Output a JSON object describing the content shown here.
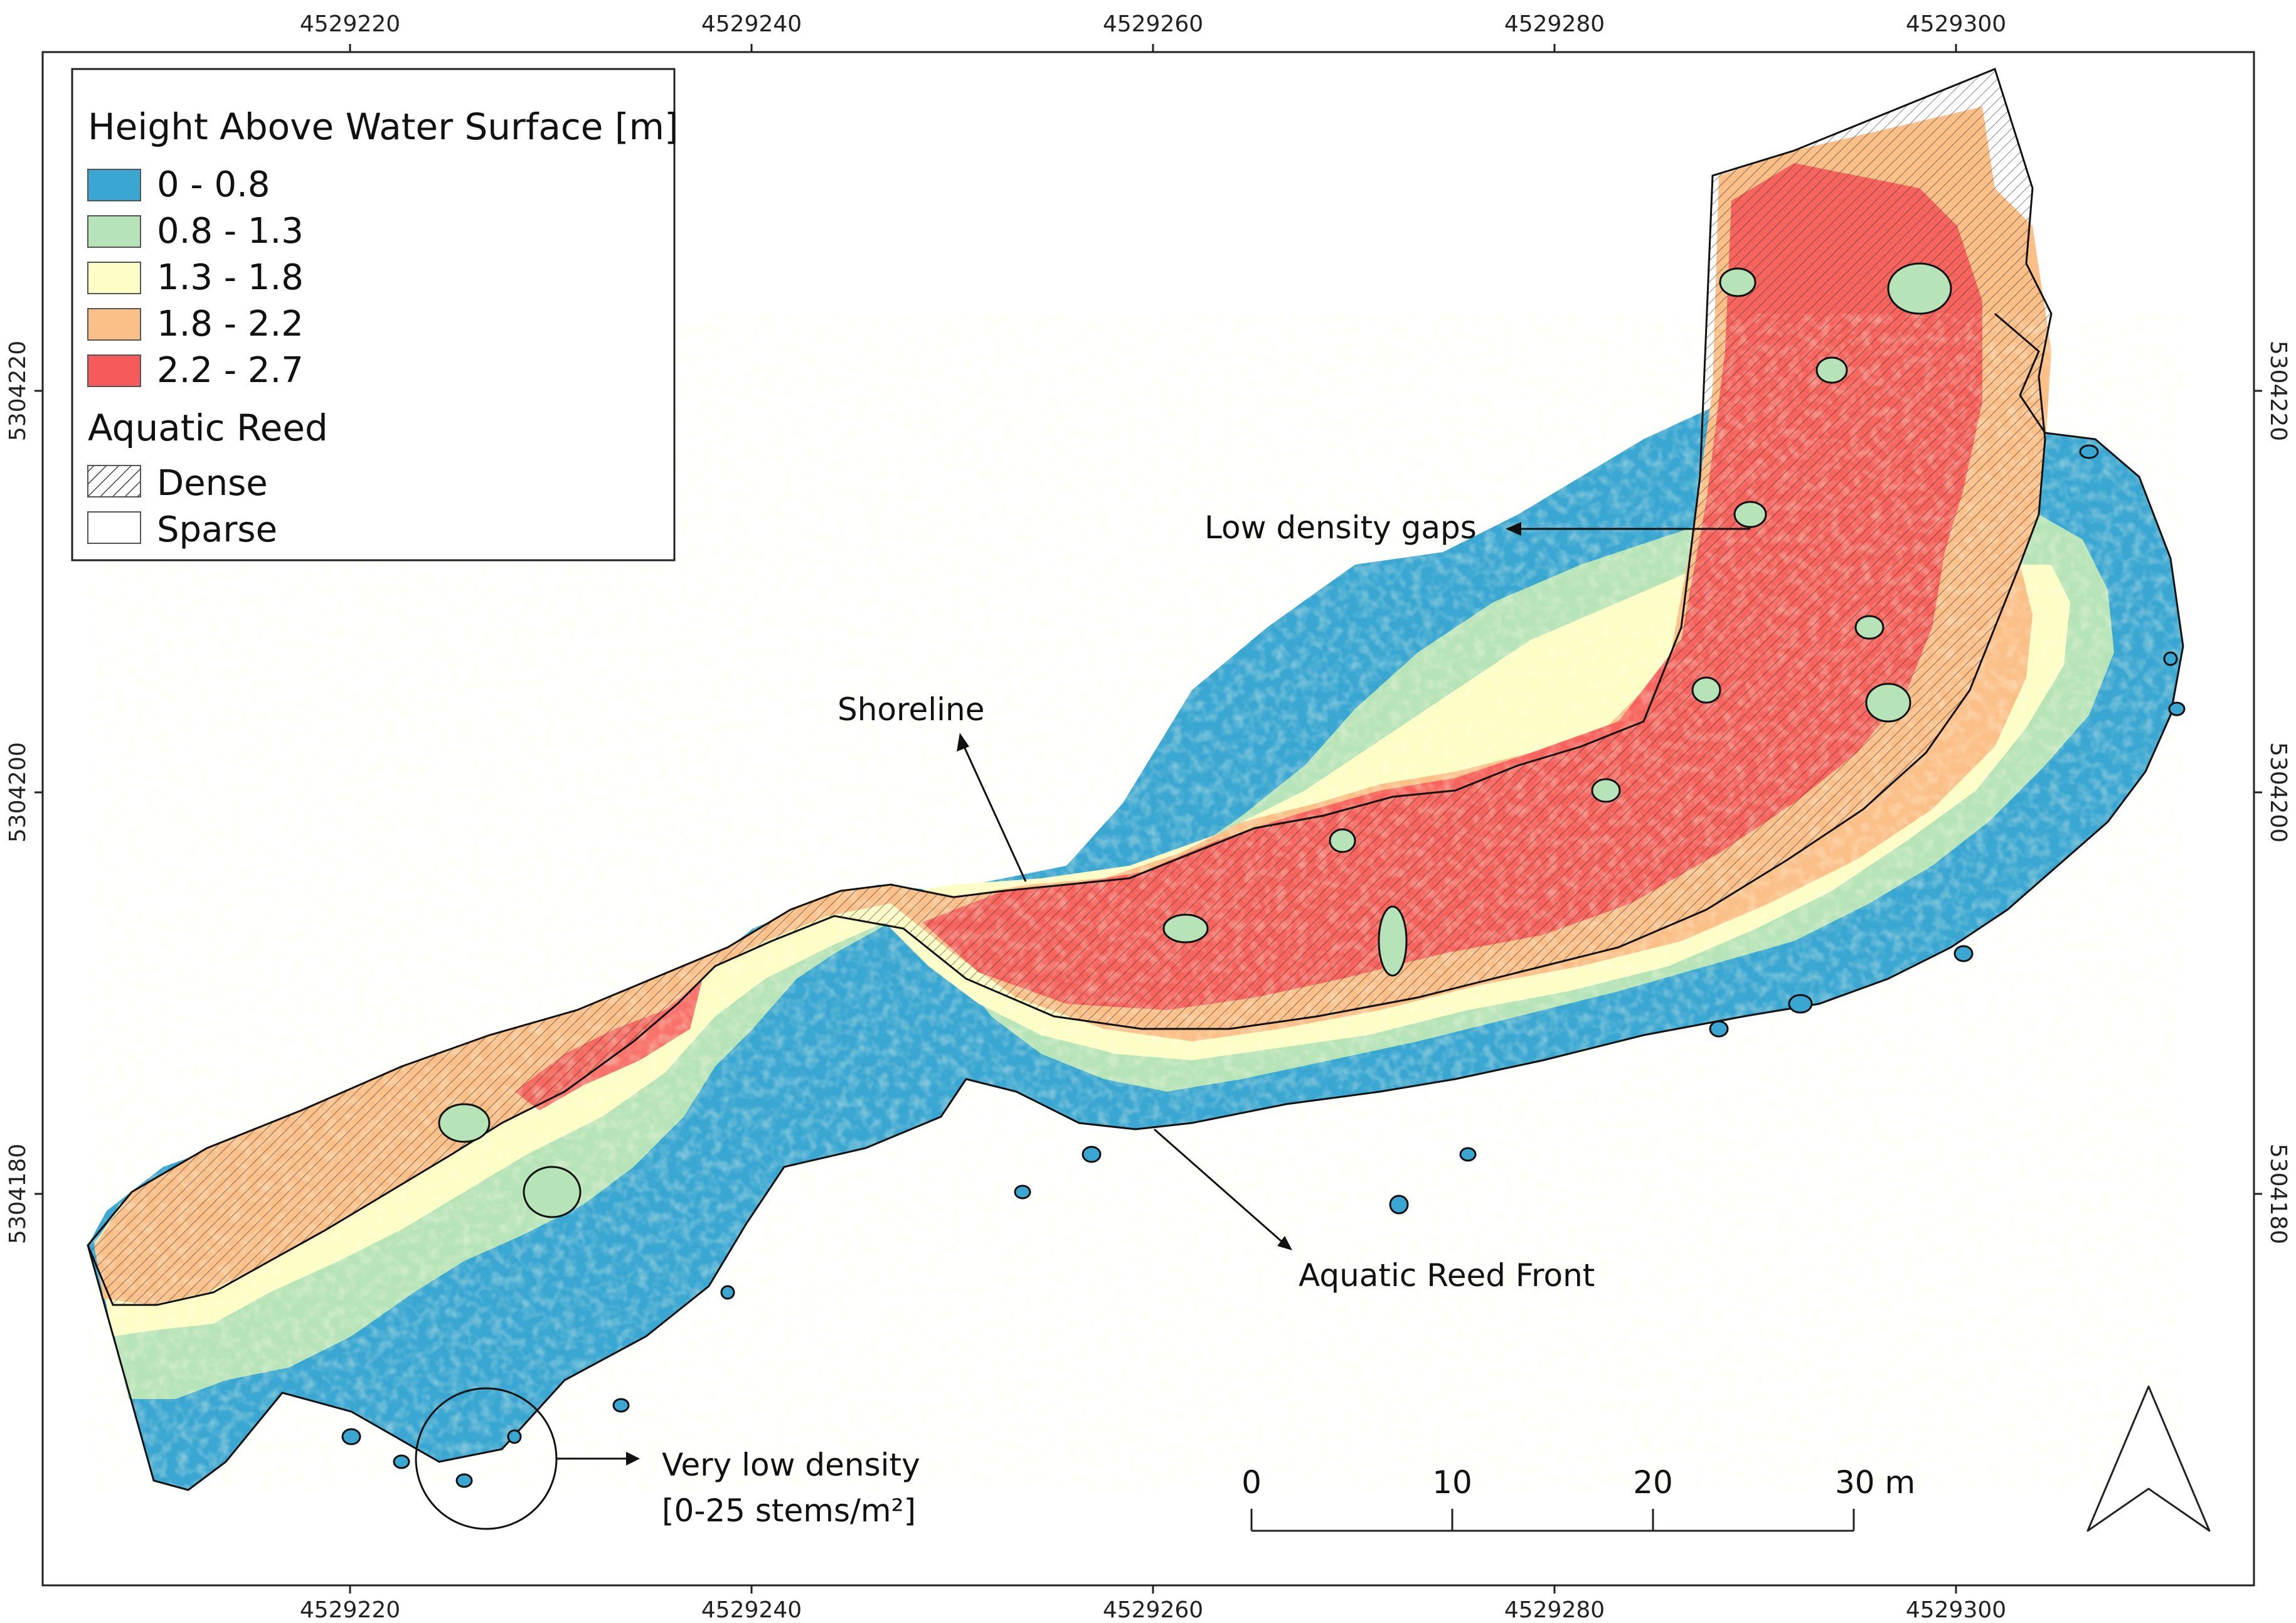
{
  "legend": {
    "height_title": "Height Above Water Surface [m]",
    "height_classes": [
      {
        "label": "0 - 0.8",
        "color": "#3aa7d2"
      },
      {
        "label": "0.8 - 1.3",
        "color": "#b6e3b8"
      },
      {
        "label": "1.3 - 1.8",
        "color": "#fdfdc6"
      },
      {
        "label": "1.8 - 2.2",
        "color": "#fbbf88"
      },
      {
        "label": "2.2 - 2.7",
        "color": "#f65a5a"
      }
    ],
    "reed_title": "Aquatic Reed",
    "reed_classes": [
      {
        "label": "Dense",
        "pattern": "hatched"
      },
      {
        "label": "Sparse",
        "pattern": "blank"
      }
    ]
  },
  "axes": {
    "x_ticks": [
      "4529220",
      "4529240",
      "4529260",
      "4529280",
      "4529300"
    ],
    "y_ticks": [
      "5304220",
      "5304200",
      "5304180"
    ]
  },
  "annotations": {
    "gaps": "Low density gaps",
    "shoreline": "Shoreline",
    "reed_front": "Aquatic Reed Front",
    "very_low_line1": "Very low density",
    "very_low_line2": "[0-25 stems/m²]"
  },
  "scale_bar": {
    "labels": [
      "0",
      "10",
      "20",
      "30 m"
    ]
  },
  "north_arrow": {
    "icon": "north-arrow-icon"
  }
}
